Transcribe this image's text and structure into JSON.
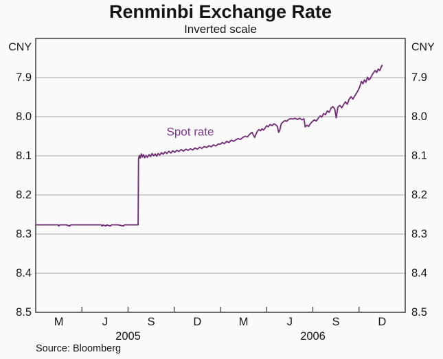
{
  "header": {
    "title": "Renminbi Exchange Rate",
    "subtitle": "Inverted scale"
  },
  "footer": {
    "source": "Source: Bloomberg"
  },
  "colors": {
    "background": "#fafafa",
    "frame": "#3d3d3d",
    "grid": "#a6a6a6",
    "text": "#141414",
    "line": "#722f78",
    "annotation": "#7e3390"
  },
  "chart_data": {
    "type": "line",
    "title": "Renminbi Exchange Rate",
    "subtitle": "Inverted scale",
    "y_unit": "CNY",
    "series_label": "Spot rate",
    "inverted_y_scale": true,
    "ylim": [
      7.8,
      8.5
    ],
    "x_months_span": 24,
    "x_domain": [
      "Jan 2005",
      "Jan 2007"
    ],
    "grid": true,
    "legend_position": "none",
    "y_ticks": [
      {
        "value": 7.9,
        "label": "7.9"
      },
      {
        "value": 8.0,
        "label": "8.0"
      },
      {
        "value": 8.1,
        "label": "8.1"
      },
      {
        "value": 8.2,
        "label": "8.2"
      },
      {
        "value": 8.3,
        "label": "8.3"
      },
      {
        "value": 8.4,
        "label": "8.4"
      },
      {
        "value": 8.5,
        "label": "8.5"
      }
    ],
    "gridline_values": [
      7.9,
      8.0,
      8.1,
      8.2,
      8.3,
      8.4
    ],
    "x_quarter_ticks_months": [
      3,
      6,
      9,
      12,
      15,
      18,
      21
    ],
    "month_labels": [
      {
        "pos": 1.5,
        "label": "M"
      },
      {
        "pos": 4.5,
        "label": "J"
      },
      {
        "pos": 7.5,
        "label": "S"
      },
      {
        "pos": 10.5,
        "label": "D"
      },
      {
        "pos": 13.5,
        "label": "M"
      },
      {
        "pos": 16.5,
        "label": "J"
      },
      {
        "pos": 19.5,
        "label": "S"
      },
      {
        "pos": 22.5,
        "label": "D"
      }
    ],
    "year_labels": [
      {
        "pos": 6,
        "label": "2005"
      },
      {
        "pos": 18,
        "label": "2006"
      }
    ],
    "series": [
      {
        "name": "Spot rate",
        "unit": "CNY per USD",
        "points": [
          [
            0.0,
            8.2765
          ],
          [
            0.4,
            8.2765
          ],
          [
            0.8,
            8.2765
          ],
          [
            1.2,
            8.2765
          ],
          [
            1.45,
            8.2765
          ],
          [
            1.5,
            8.2795
          ],
          [
            1.56,
            8.2765
          ],
          [
            2.0,
            8.2765
          ],
          [
            2.2,
            8.2795
          ],
          [
            2.27,
            8.2765
          ],
          [
            2.7,
            8.2765
          ],
          [
            3.1,
            8.2765
          ],
          [
            3.5,
            8.2765
          ],
          [
            3.9,
            8.2765
          ],
          [
            4.25,
            8.2765
          ],
          [
            4.31,
            8.2795
          ],
          [
            4.38,
            8.2765
          ],
          [
            4.55,
            8.2795
          ],
          [
            4.62,
            8.2765
          ],
          [
            4.85,
            8.2795
          ],
          [
            4.92,
            8.2765
          ],
          [
            5.35,
            8.2765
          ],
          [
            5.7,
            8.2795
          ],
          [
            5.77,
            8.2765
          ],
          [
            6.2,
            8.2765
          ],
          [
            6.65,
            8.2765
          ],
          [
            6.68,
            8.108
          ],
          [
            6.73,
            8.099
          ],
          [
            6.79,
            8.106
          ],
          [
            6.86,
            8.095
          ],
          [
            6.93,
            8.103
          ],
          [
            7.0,
            8.097
          ],
          [
            7.08,
            8.105
          ],
          [
            7.17,
            8.099
          ],
          [
            7.26,
            8.104
          ],
          [
            7.36,
            8.097
          ],
          [
            7.46,
            8.102
          ],
          [
            7.56,
            8.094
          ],
          [
            7.66,
            8.1
          ],
          [
            7.76,
            8.095
          ],
          [
            7.86,
            8.101
          ],
          [
            7.96,
            8.094
          ],
          [
            8.06,
            8.098
          ],
          [
            8.17,
            8.092
          ],
          [
            8.28,
            8.096
          ],
          [
            8.4,
            8.09
          ],
          [
            8.52,
            8.094
          ],
          [
            8.65,
            8.088
          ],
          [
            8.78,
            8.093
          ],
          [
            8.9,
            8.087
          ],
          [
            9.03,
            8.091
          ],
          [
            9.16,
            8.086
          ],
          [
            9.3,
            8.089
          ],
          [
            9.45,
            8.084
          ],
          [
            9.6,
            8.088
          ],
          [
            9.75,
            8.083
          ],
          [
            9.9,
            8.086
          ],
          [
            10.05,
            8.082
          ],
          [
            10.2,
            8.085
          ],
          [
            10.35,
            8.08
          ],
          [
            10.5,
            8.083
          ],
          [
            10.65,
            8.078
          ],
          [
            10.8,
            8.081
          ],
          [
            10.95,
            8.076
          ],
          [
            11.1,
            8.079
          ],
          [
            11.25,
            8.074
          ],
          [
            11.4,
            8.077
          ],
          [
            11.55,
            8.072
          ],
          [
            11.7,
            8.075
          ],
          [
            11.85,
            8.07
          ],
          [
            12.0,
            8.07
          ],
          [
            12.12,
            8.066
          ],
          [
            12.25,
            8.069
          ],
          [
            12.4,
            8.063
          ],
          [
            12.55,
            8.066
          ],
          [
            12.7,
            8.06
          ],
          [
            12.85,
            8.063
          ],
          [
            13.0,
            8.059
          ],
          [
            13.15,
            8.056
          ],
          [
            13.3,
            8.058
          ],
          [
            13.45,
            8.053
          ],
          [
            13.6,
            8.05
          ],
          [
            13.75,
            8.052
          ],
          [
            13.85,
            8.047
          ],
          [
            13.95,
            8.043
          ],
          [
            14.05,
            8.04
          ],
          [
            14.15,
            8.048
          ],
          [
            14.22,
            8.053
          ],
          [
            14.3,
            8.045
          ],
          [
            14.4,
            8.037
          ],
          [
            14.5,
            8.033
          ],
          [
            14.6,
            8.036
          ],
          [
            14.7,
            8.031
          ],
          [
            14.8,
            8.034
          ],
          [
            14.9,
            8.029
          ],
          [
            15.0,
            8.023
          ],
          [
            15.1,
            8.026
          ],
          [
            15.22,
            8.02
          ],
          [
            15.35,
            8.023
          ],
          [
            15.48,
            8.018
          ],
          [
            15.6,
            8.021
          ],
          [
            15.7,
            8.025
          ],
          [
            15.78,
            8.04
          ],
          [
            15.85,
            8.035
          ],
          [
            15.95,
            8.018
          ],
          [
            16.05,
            8.014
          ],
          [
            16.18,
            8.01
          ],
          [
            16.3,
            8.012
          ],
          [
            16.42,
            8.007
          ],
          [
            16.55,
            8.005
          ],
          [
            16.7,
            8.006
          ],
          [
            16.85,
            8.004
          ],
          [
            17.0,
            8.007
          ],
          [
            17.15,
            8.004
          ],
          [
            17.3,
            8.008
          ],
          [
            17.42,
            8.005
          ],
          [
            17.5,
            8.026
          ],
          [
            17.62,
            8.022
          ],
          [
            17.72,
            8.025
          ],
          [
            17.82,
            8.019
          ],
          [
            17.95,
            8.013
          ],
          [
            18.1,
            8.008
          ],
          [
            18.22,
            8.011
          ],
          [
            18.35,
            8.004
          ],
          [
            18.48,
            7.998
          ],
          [
            18.58,
            8.001
          ],
          [
            18.7,
            7.992
          ],
          [
            18.82,
            7.995
          ],
          [
            18.94,
            7.985
          ],
          [
            19.06,
            7.989
          ],
          [
            19.18,
            7.978
          ],
          [
            19.3,
            7.974
          ],
          [
            19.42,
            7.98
          ],
          [
            19.52,
            8.003
          ],
          [
            19.62,
            7.976
          ],
          [
            19.75,
            7.971
          ],
          [
            19.88,
            7.977
          ],
          [
            20.0,
            7.969
          ],
          [
            20.12,
            7.962
          ],
          [
            20.24,
            7.968
          ],
          [
            20.36,
            7.955
          ],
          [
            20.48,
            7.949
          ],
          [
            20.6,
            7.955
          ],
          [
            20.72,
            7.947
          ],
          [
            20.85,
            7.939
          ],
          [
            20.95,
            7.932
          ],
          [
            21.05,
            7.923
          ],
          [
            21.15,
            7.91
          ],
          [
            21.25,
            7.916
          ],
          [
            21.35,
            7.906
          ],
          [
            21.45,
            7.912
          ],
          [
            21.55,
            7.899
          ],
          [
            21.65,
            7.906
          ],
          [
            21.75,
            7.901
          ],
          [
            21.85,
            7.893
          ],
          [
            21.95,
            7.887
          ],
          [
            22.05,
            7.882
          ],
          [
            22.15,
            7.887
          ],
          [
            22.25,
            7.878
          ],
          [
            22.35,
            7.882
          ],
          [
            22.45,
            7.872
          ],
          [
            22.5,
            7.869
          ]
        ]
      }
    ]
  }
}
